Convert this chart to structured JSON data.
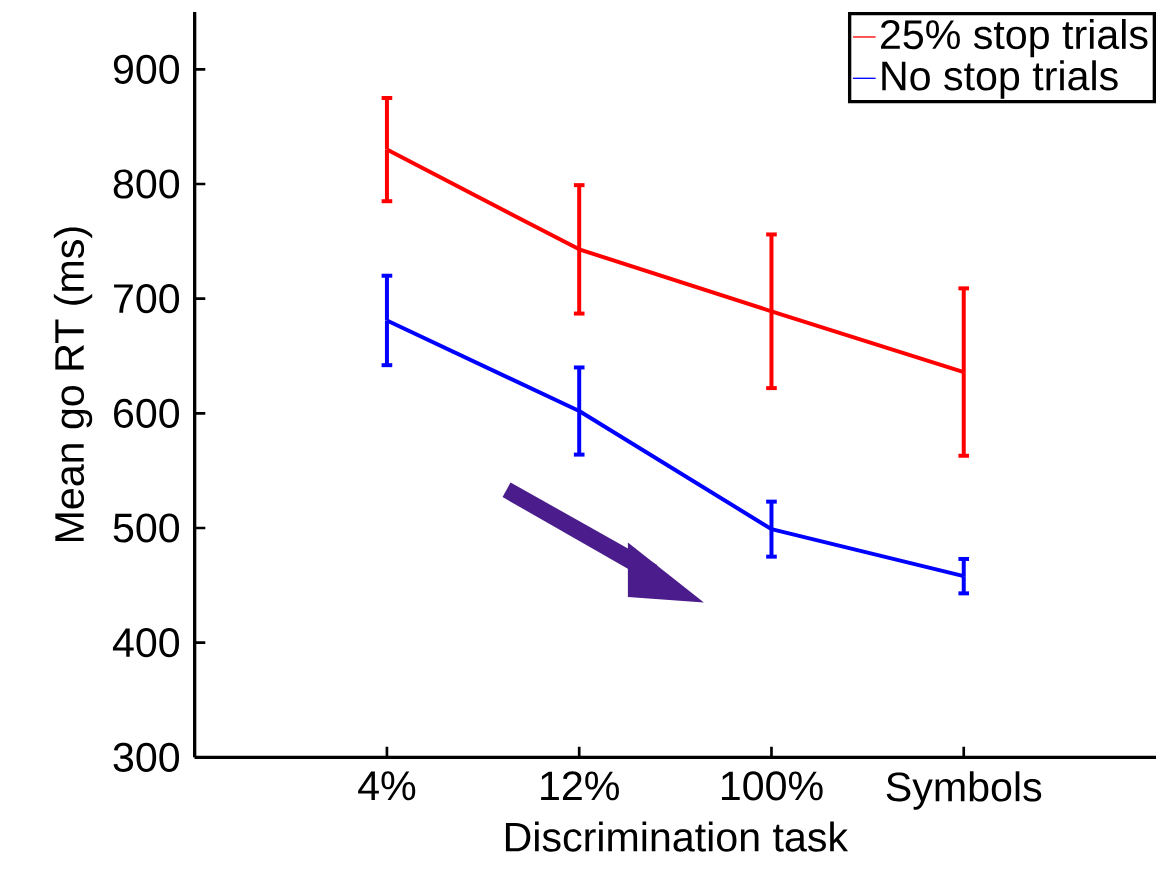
{
  "chart_data": {
    "type": "line",
    "xlabel": "Discrimination task",
    "ylabel": "Mean go RT (ms)",
    "categories": [
      "4%",
      "12%",
      "100%",
      "Symbols"
    ],
    "series": [
      {
        "name": "25% stop trials",
        "color": "#ff0000",
        "values": [
          830,
          743,
          689,
          636
        ],
        "errors": [
          45,
          56,
          67,
          73
        ]
      },
      {
        "name": "No stop trials",
        "color": "#0000ff",
        "values": [
          681,
          602,
          499,
          458
        ],
        "errors": [
          39,
          38,
          24,
          15
        ]
      }
    ],
    "ylim": [
      300,
      950
    ],
    "yticks": [
      300,
      400,
      500,
      600,
      700,
      800,
      900
    ],
    "grid": false,
    "legend": "top right",
    "marker": "none",
    "line_style": "solid"
  }
}
